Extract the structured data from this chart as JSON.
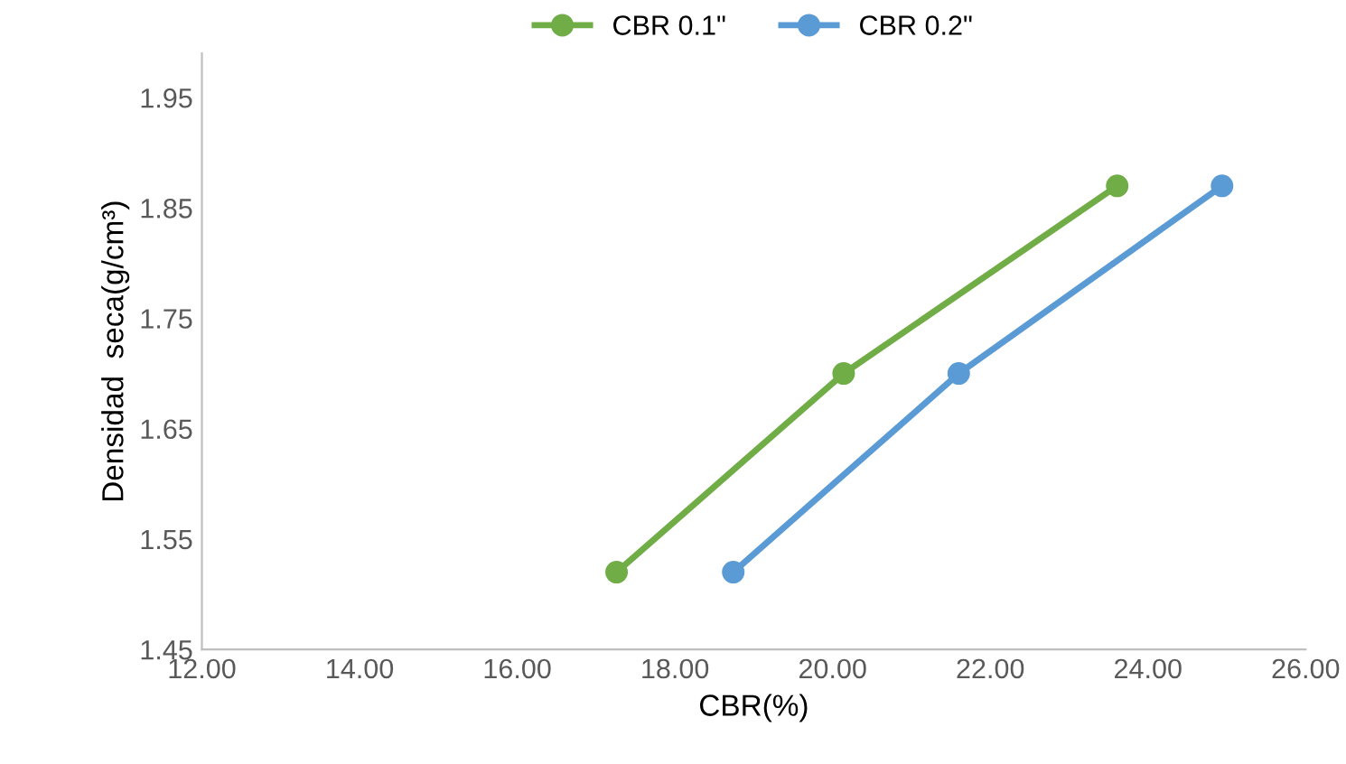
{
  "chart_data": {
    "type": "line",
    "xlabel": "CBR(%)",
    "ylabel": "Densidad  seca(g/cm³)",
    "series": [
      {
        "name": "CBR 0.1\"",
        "color": "#70ad47",
        "x": [
          17.26,
          20.14,
          23.61
        ],
        "values": [
          1.52,
          1.7,
          1.87
        ]
      },
      {
        "name": "CBR 0.2\"",
        "color": "#5b9bd5",
        "x": [
          18.74,
          21.6,
          24.94
        ],
        "values": [
          1.52,
          1.7,
          1.87
        ]
      }
    ],
    "xlim": [
      12,
      26
    ],
    "xticks": [
      {
        "value": 12,
        "label": "12.00"
      },
      {
        "value": 14,
        "label": "14.00"
      },
      {
        "value": 16,
        "label": "16.00"
      },
      {
        "value": 18,
        "label": "18.00"
      },
      {
        "value": 20,
        "label": "20.00"
      },
      {
        "value": 22,
        "label": "22.00"
      },
      {
        "value": 24,
        "label": "24.00"
      },
      {
        "value": 26,
        "label": "26.00"
      }
    ],
    "ylim": [
      1.45,
      1.99
    ],
    "yticks": [
      1.45,
      1.55,
      1.65,
      1.75,
      1.85,
      1.95
    ],
    "grid": false,
    "legend": "top",
    "marker": "circle",
    "line_style": "solid"
  }
}
